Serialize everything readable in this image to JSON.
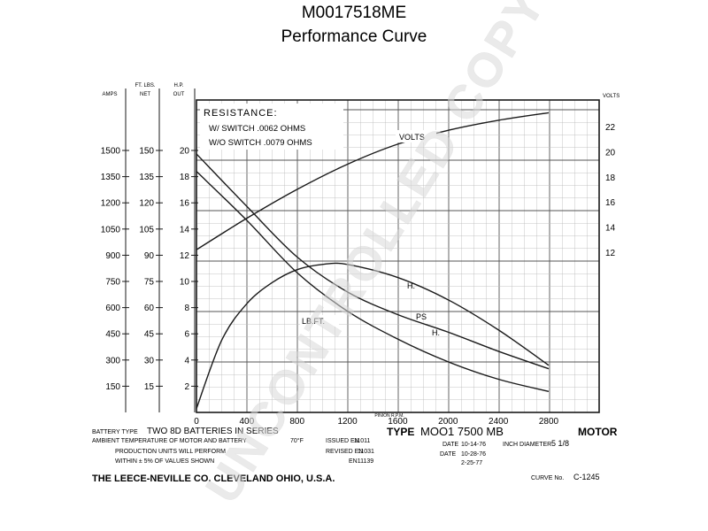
{
  "header": {
    "title": "M0017518ME",
    "subtitle": "Performance Curve"
  },
  "watermark": "UNCONTROLLED COPY",
  "colors": {
    "ink": "#1a1a1a",
    "grid_minor": "#bdbdbd",
    "grid_major": "#555555",
    "watermark": "#d9d9d9"
  },
  "chart_data": {
    "type": "line",
    "xlabel": "PINION R.P.M.",
    "xlim": [
      0,
      3200
    ],
    "x_ticks": [
      "0",
      "400",
      "800",
      "1200",
      "1600",
      "2000",
      "2400",
      "2800"
    ],
    "x_tick_values": [
      0,
      400,
      800,
      1200,
      1600,
      2000,
      2400,
      2800
    ],
    "left_axes": [
      {
        "label_top": "",
        "label_bottom": "AMPS",
        "ticks": [
          "1500",
          "1350",
          "1200",
          "1050",
          "900",
          "750",
          "600",
          "450",
          "300",
          "150"
        ],
        "tick_values": [
          1500,
          1350,
          1200,
          1050,
          900,
          750,
          600,
          450,
          300,
          150
        ],
        "max": 1500
      },
      {
        "label_top": "FT. LBS.",
        "label_bottom": "NET",
        "ticks": [
          "150",
          "135",
          "120",
          "105",
          "90",
          "75",
          "60",
          "45",
          "30",
          "15"
        ],
        "tick_values": [
          150,
          135,
          120,
          105,
          90,
          75,
          60,
          45,
          30,
          15
        ],
        "max": 150
      },
      {
        "label_top": "H.P.",
        "label_bottom": "OUT",
        "ticks": [
          "20",
          "18",
          "16",
          "14",
          "12",
          "10",
          "8",
          "6",
          "4",
          "2"
        ],
        "tick_values": [
          20,
          18,
          16,
          14,
          12,
          10,
          8,
          6,
          4,
          2
        ],
        "max": 20
      }
    ],
    "right_axis": {
      "label": "VOLTS",
      "ticks": [
        "22",
        "20",
        "18",
        "16",
        "14",
        "12"
      ],
      "tick_values": [
        22,
        20,
        18,
        16,
        14,
        12
      ],
      "min": 6,
      "max": 24
    },
    "series": [
      {
        "name": "VOLTS",
        "axis": "volts",
        "x": [
          0,
          400,
          800,
          1200,
          1600,
          2000,
          2400,
          2800
        ],
        "y": [
          12.2,
          14.7,
          17.0,
          19.0,
          20.6,
          21.7,
          22.5,
          23.1
        ]
      },
      {
        "name": "AMPS",
        "axis": "amps",
        "x": [
          0,
          400,
          800,
          1200,
          1600,
          2000,
          2400,
          2800
        ],
        "y": [
          1480,
          1180,
          890,
          690,
          560,
          460,
          350,
          250
        ]
      },
      {
        "name": "LB.FT.",
        "axis": "ftlbs",
        "x": [
          0,
          400,
          800,
          1200,
          1600,
          2000,
          2400,
          2800
        ],
        "y": [
          138,
          110,
          80,
          58,
          42,
          29,
          19,
          12
        ]
      },
      {
        "name": "H.P.",
        "axis": "hp",
        "x": [
          0,
          200,
          400,
          600,
          800,
          1000,
          1200,
          1600,
          2000,
          2400,
          2800
        ],
        "y": [
          0.3,
          5.5,
          8.3,
          9.9,
          10.9,
          11.3,
          11.3,
          10.3,
          8.6,
          6.3,
          3.6
        ]
      }
    ],
    "series_labels": {
      "volts": "VOLTS",
      "lbft": "LB.FT.",
      "amps_partial": "PS",
      "hp_partial": "H.",
      "hp_partial2": "H."
    },
    "annotations": {
      "resistance_title": "RESISTANCE:",
      "resistance_line1": "W/ SWITCH .0062 OHMS",
      "resistance_line2": "W/O SWITCH .0079 OHMS"
    }
  },
  "footer": {
    "battery_type_label": "BATTERY TYPE",
    "battery_type_value": "TWO 8D BATTERIES IN SERIES",
    "ambient_label": "AMBIENT TEMPERATURE OF MOTOR AND BATTERY",
    "ambient_value": "70°F",
    "production_line1": "PRODUCTION UNITS WILL PERFORM",
    "production_line2": "WITHIN ± 5% OF VALUES SHOWN",
    "issued_label": "ISSUED EN",
    "issued_value": "11011",
    "revised_label": "REVISED EN",
    "revised_value": "11031",
    "eng_value": "EN11139",
    "type_label": "TYPE",
    "type_value": "MOO1 7500 MB",
    "motor_label": "MOTOR",
    "date_label": "DATE",
    "date1": "10-14-76",
    "date2": "10-28-76",
    "date3": "2-25-77",
    "inch_diameter_label": "INCH DIAMETER",
    "inch_diameter_value": "5 1/8",
    "company": "THE LEECE-NEVILLE CO. CLEVELAND OHIO, U.S.A.",
    "curve_no_label": "CURVE No.",
    "curve_no_value": "C-1245"
  }
}
